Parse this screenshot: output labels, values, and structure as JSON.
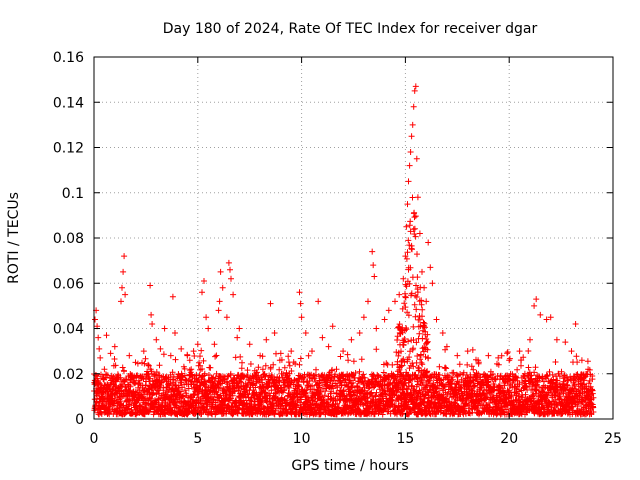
{
  "chart_data": {
    "type": "scatter",
    "title": "Day 180 of 2024, Rate Of TEC Index for receiver dgar",
    "xlabel": "GPS time / hours",
    "ylabel": "ROTI / TECUs",
    "xlim": [
      0,
      25
    ],
    "ylim": [
      0,
      0.16
    ],
    "xticks": [
      0,
      5,
      10,
      15,
      20,
      25
    ],
    "xtick_labels": [
      "0",
      "5",
      "10",
      "15",
      "20",
      "25"
    ],
    "yticks": [
      0,
      0.02,
      0.04,
      0.06,
      0.08,
      0.1,
      0.12,
      0.14,
      0.16
    ],
    "ytick_labels": [
      "0",
      "0.02",
      "0.04",
      "0.06",
      "0.08",
      "0.1",
      "0.12",
      "0.14",
      "0.16"
    ],
    "grid": true,
    "marker": "+",
    "color": "#ff0000",
    "series": [
      {
        "name": "ROTI",
        "points": [
          [
            0.05,
            0.044
          ],
          [
            0.1,
            0.048
          ],
          [
            0.15,
            0.041
          ],
          [
            0.2,
            0.036
          ],
          [
            0.25,
            0.031
          ],
          [
            0.3,
            0.027
          ],
          [
            0.5,
            0.022
          ],
          [
            0.6,
            0.037
          ],
          [
            0.8,
            0.029
          ],
          [
            1.0,
            0.032
          ],
          [
            1.3,
            0.052
          ],
          [
            1.35,
            0.058
          ],
          [
            1.4,
            0.065
          ],
          [
            1.45,
            0.072
          ],
          [
            1.5,
            0.055
          ],
          [
            1.7,
            0.028
          ],
          [
            2.0,
            0.025
          ],
          [
            2.4,
            0.03
          ],
          [
            2.7,
            0.059
          ],
          [
            2.75,
            0.046
          ],
          [
            2.8,
            0.042
          ],
          [
            3.0,
            0.035
          ],
          [
            3.2,
            0.031
          ],
          [
            3.4,
            0.04
          ],
          [
            3.7,
            0.028
          ],
          [
            3.8,
            0.054
          ],
          [
            3.9,
            0.038
          ],
          [
            4.2,
            0.031
          ],
          [
            4.5,
            0.028
          ],
          [
            4.8,
            0.03
          ],
          [
            5.0,
            0.033
          ],
          [
            5.2,
            0.056
          ],
          [
            5.3,
            0.061
          ],
          [
            5.4,
            0.045
          ],
          [
            5.5,
            0.04
          ],
          [
            5.8,
            0.033
          ],
          [
            6.0,
            0.048
          ],
          [
            6.05,
            0.052
          ],
          [
            6.1,
            0.065
          ],
          [
            6.2,
            0.058
          ],
          [
            6.4,
            0.045
          ],
          [
            6.5,
            0.069
          ],
          [
            6.55,
            0.066
          ],
          [
            6.6,
            0.062
          ],
          [
            6.7,
            0.055
          ],
          [
            6.9,
            0.036
          ],
          [
            7.0,
            0.04
          ],
          [
            7.5,
            0.033
          ],
          [
            8.0,
            0.028
          ],
          [
            8.3,
            0.035
          ],
          [
            8.5,
            0.051
          ],
          [
            8.7,
            0.038
          ],
          [
            9.0,
            0.029
          ],
          [
            9.5,
            0.03
          ],
          [
            9.9,
            0.056
          ],
          [
            9.95,
            0.051
          ],
          [
            10.0,
            0.045
          ],
          [
            10.2,
            0.038
          ],
          [
            10.5,
            0.03
          ],
          [
            10.8,
            0.052
          ],
          [
            11.0,
            0.036
          ],
          [
            11.3,
            0.032
          ],
          [
            11.5,
            0.041
          ],
          [
            12.0,
            0.03
          ],
          [
            12.4,
            0.035
          ],
          [
            12.8,
            0.038
          ],
          [
            13.0,
            0.045
          ],
          [
            13.2,
            0.052
          ],
          [
            13.4,
            0.074
          ],
          [
            13.45,
            0.068
          ],
          [
            13.5,
            0.063
          ],
          [
            13.6,
            0.04
          ],
          [
            14.0,
            0.044
          ],
          [
            14.2,
            0.048
          ],
          [
            14.5,
            0.052
          ],
          [
            14.7,
            0.055
          ],
          [
            14.9,
            0.062
          ],
          [
            15.0,
            0.072
          ],
          [
            15.05,
            0.085
          ],
          [
            15.1,
            0.095
          ],
          [
            15.15,
            0.105
          ],
          [
            15.2,
            0.112
          ],
          [
            15.25,
            0.118
          ],
          [
            15.3,
            0.125
          ],
          [
            15.35,
            0.13
          ],
          [
            15.4,
            0.138
          ],
          [
            15.45,
            0.145
          ],
          [
            15.5,
            0.147
          ],
          [
            15.55,
            0.115
          ],
          [
            15.6,
            0.098
          ],
          [
            15.7,
            0.082
          ],
          [
            15.8,
            0.065
          ],
          [
            15.9,
            0.058
          ],
          [
            16.0,
            0.052
          ],
          [
            16.1,
            0.078
          ],
          [
            16.2,
            0.067
          ],
          [
            16.3,
            0.06
          ],
          [
            16.5,
            0.044
          ],
          [
            16.8,
            0.038
          ],
          [
            17.0,
            0.032
          ],
          [
            17.5,
            0.028
          ],
          [
            18.0,
            0.03
          ],
          [
            18.5,
            0.026
          ],
          [
            19.0,
            0.028
          ],
          [
            19.5,
            0.024
          ],
          [
            20.0,
            0.026
          ],
          [
            20.5,
            0.03
          ],
          [
            21.0,
            0.035
          ],
          [
            21.2,
            0.05
          ],
          [
            21.3,
            0.053
          ],
          [
            21.5,
            0.046
          ],
          [
            21.8,
            0.044
          ],
          [
            22.0,
            0.045
          ],
          [
            22.3,
            0.035
          ],
          [
            22.7,
            0.034
          ],
          [
            23.0,
            0.03
          ],
          [
            23.2,
            0.042
          ],
          [
            23.5,
            0.026
          ],
          [
            23.8,
            0.022
          ],
          [
            24.0,
            0.019
          ]
        ],
        "baseline_band": [
          0.002,
          0.02
        ]
      }
    ]
  }
}
